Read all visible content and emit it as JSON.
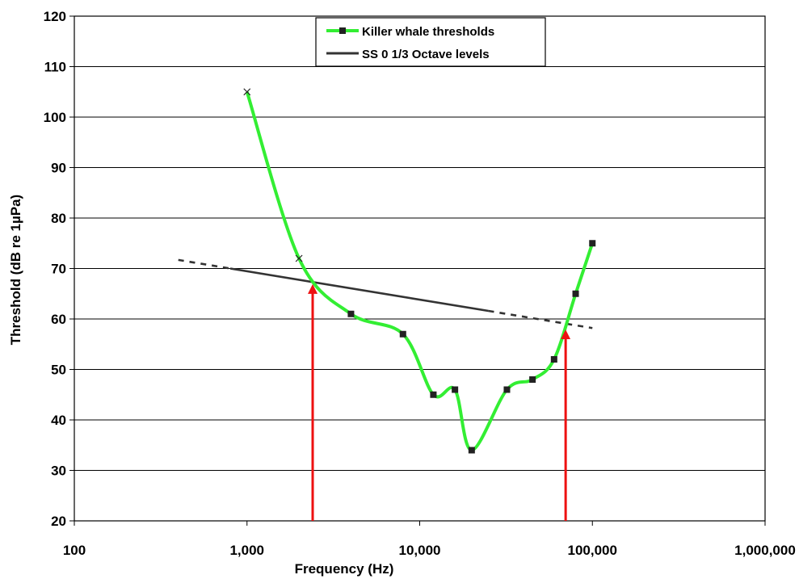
{
  "chart_data": {
    "type": "line",
    "xlabel": "Frequency (Hz)",
    "ylabel": "Threshold (dB re 1µPa)",
    "x_scale": "log",
    "xlim": [
      100,
      1000000
    ],
    "ylim": [
      20,
      120
    ],
    "grid": "horizontal",
    "legend_position": "top-center",
    "x_ticks": [
      {
        "value": 100,
        "label": "100"
      },
      {
        "value": 1000,
        "label": "1,000"
      },
      {
        "value": 10000,
        "label": "10,000"
      },
      {
        "value": 100000,
        "label": "100,000"
      },
      {
        "value": 1000000,
        "label": "1,000,000"
      }
    ],
    "y_ticks": [
      {
        "value": 20,
        "label": "20"
      },
      {
        "value": 30,
        "label": "30"
      },
      {
        "value": 40,
        "label": "40"
      },
      {
        "value": 50,
        "label": "50"
      },
      {
        "value": 60,
        "label": "60"
      },
      {
        "value": 70,
        "label": "70"
      },
      {
        "value": 80,
        "label": "80"
      },
      {
        "value": 90,
        "label": "90"
      },
      {
        "value": 100,
        "label": "100"
      },
      {
        "value": 110,
        "label": "110"
      },
      {
        "value": 120,
        "label": "120"
      }
    ],
    "series": [
      {
        "name": "Killer whale thresholds",
        "color": "#33ee33",
        "marker_color": "#222222",
        "points": [
          {
            "x": 1000,
            "y": 105,
            "marker": "x"
          },
          {
            "x": 2000,
            "y": 72,
            "marker": "x"
          },
          {
            "x": 4000,
            "y": 61,
            "marker": "square"
          },
          {
            "x": 8000,
            "y": 57,
            "marker": "square"
          },
          {
            "x": 12000,
            "y": 45,
            "marker": "square"
          },
          {
            "x": 16000,
            "y": 46,
            "marker": "square"
          },
          {
            "x": 20000,
            "y": 34,
            "marker": "square"
          },
          {
            "x": 32000,
            "y": 46,
            "marker": "square"
          },
          {
            "x": 45000,
            "y": 48,
            "marker": "square"
          },
          {
            "x": 60000,
            "y": 52,
            "marker": "square"
          },
          {
            "x": 80000,
            "y": 65,
            "marker": "square"
          },
          {
            "x": 100000,
            "y": 75,
            "marker": "square"
          }
        ]
      },
      {
        "name": "SS 0 1/3 Octave levels",
        "color": "#333333",
        "solid": [
          {
            "x": 800,
            "y": 70
          },
          {
            "x": 25000,
            "y": 61.6
          }
        ],
        "dashed_extensions": [
          [
            {
              "x": 400,
              "y": 71.7
            },
            {
              "x": 800,
              "y": 70
            }
          ],
          [
            {
              "x": 25000,
              "y": 61.6
            },
            {
              "x": 100000,
              "y": 58.2
            }
          ]
        ]
      }
    ],
    "annotations": [
      {
        "type": "arrow",
        "color": "#ee1111",
        "x": 2400,
        "y_from": 20,
        "y_to": 67
      },
      {
        "type": "arrow",
        "color": "#ee1111",
        "x": 70000,
        "y_from": 20,
        "y_to": 58
      }
    ]
  }
}
